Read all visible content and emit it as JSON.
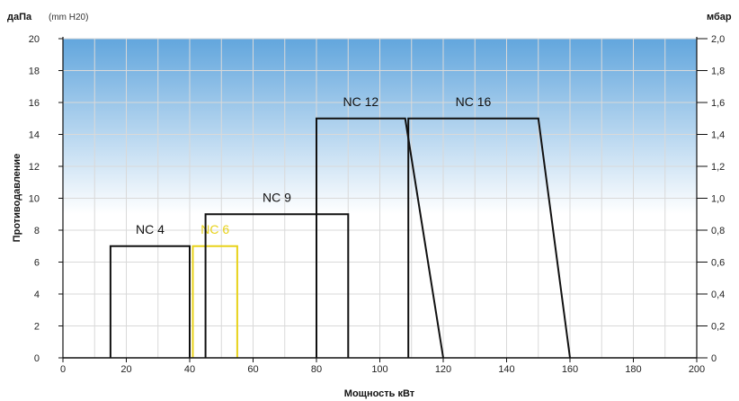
{
  "chart_data": {
    "type": "line",
    "title": "",
    "xlabel": "Мощность кВт",
    "ylabel": "Противодавление",
    "y_left_unit": "даПа",
    "y_left_unit_sub": "(mm H20)",
    "y_right_unit": "мбар",
    "xlim": [
      0,
      200
    ],
    "ylim": [
      0,
      20
    ],
    "x_ticks": [
      0,
      20,
      40,
      60,
      80,
      100,
      120,
      140,
      160,
      180,
      200
    ],
    "y_ticks": [
      0,
      2,
      4,
      6,
      8,
      10,
      12,
      14,
      16,
      18,
      20
    ],
    "y_right_ticks": [
      "0",
      "0,2",
      "0,4",
      "0,6",
      "0,8",
      "1,0",
      "1,2",
      "1,4",
      "1,6",
      "1,8",
      "2,0"
    ],
    "grid": true,
    "series": [
      {
        "name": "NC 4",
        "color": "#111111",
        "points": [
          [
            15,
            0
          ],
          [
            15,
            7
          ],
          [
            40,
            7
          ],
          [
            40,
            0
          ]
        ]
      },
      {
        "name": "NC 6",
        "color": "#e8d21a",
        "points": [
          [
            41,
            0
          ],
          [
            41,
            7
          ],
          [
            55,
            7
          ],
          [
            55,
            0
          ]
        ]
      },
      {
        "name": "NC 9",
        "color": "#111111",
        "points": [
          [
            45,
            0
          ],
          [
            45,
            9
          ],
          [
            90,
            9
          ],
          [
            90,
            0
          ]
        ]
      },
      {
        "name": "NC 12",
        "color": "#111111",
        "points": [
          [
            80,
            0
          ],
          [
            80,
            15
          ],
          [
            108,
            15
          ],
          [
            120,
            0
          ]
        ]
      },
      {
        "name": "NC 16",
        "color": "#111111",
        "points": [
          [
            109,
            0
          ],
          [
            109,
            15
          ],
          [
            150,
            15
          ],
          [
            160,
            0
          ]
        ]
      }
    ]
  },
  "colors": {
    "background_top": "#62a6dd",
    "background_bottom": "#ffffff",
    "grid": "#d9d9d9",
    "axis": "#111111"
  }
}
